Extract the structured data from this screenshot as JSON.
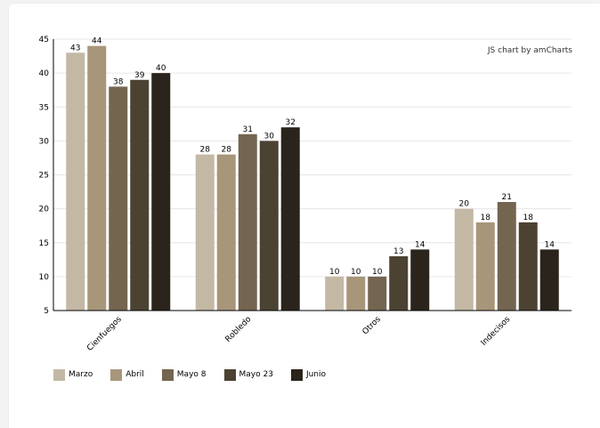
{
  "credit": "JS chart by amCharts",
  "chart_data": {
    "type": "bar",
    "title": "",
    "xlabel": "",
    "ylabel": "",
    "ylim": [
      5,
      45
    ],
    "yticks": [
      5,
      10,
      15,
      20,
      25,
      30,
      35,
      40,
      45
    ],
    "grid": true,
    "legend_position": "bottom-left",
    "categories": [
      "Cienfuegos",
      "Robledo",
      "Otros",
      "Indecisos"
    ],
    "series": [
      {
        "name": "Marzo",
        "color": "#c3b8a4",
        "values": [
          43,
          28,
          10,
          20
        ]
      },
      {
        "name": "Abril",
        "color": "#a8967a",
        "values": [
          44,
          28,
          10,
          18
        ]
      },
      {
        "name": "Mayo 8",
        "color": "#746550",
        "values": [
          38,
          31,
          10,
          21
        ]
      },
      {
        "name": "Mayo 23",
        "color": "#4c4232",
        "values": [
          39,
          30,
          13,
          18
        ]
      },
      {
        "name": "Junio",
        "color": "#2a241c",
        "values": [
          40,
          32,
          14,
          14
        ]
      }
    ]
  }
}
